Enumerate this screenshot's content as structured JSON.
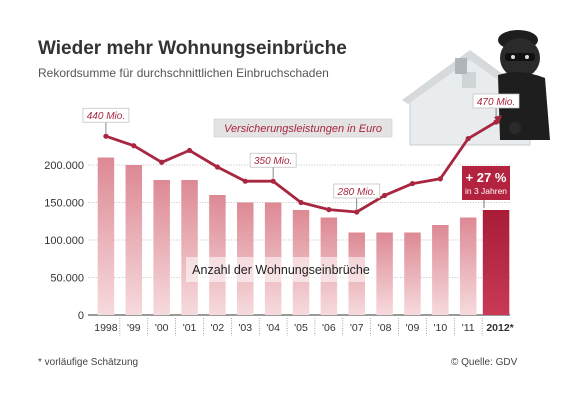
{
  "title": "Wieder mehr Wohnungseinbrüche",
  "subtitle": "Rekordsumme für durchschnittlichen Einbruchschaden",
  "footnote": "* vorläufige Schätzung",
  "source": "© Quelle: GDV",
  "colors": {
    "bar": "#e8a4ad",
    "bar_highlight": "#b3233f",
    "line": "#a8263f",
    "callout": "#b3233f"
  },
  "chart_data": {
    "type": "bar",
    "categories": [
      "1998",
      "'99",
      "'00",
      "'01",
      "'02",
      "'03",
      "'04",
      "'05",
      "'06",
      "'07",
      "'08",
      "'09",
      "'10",
      "'11",
      "2012*"
    ],
    "series": [
      {
        "name": "Anzahl der Wohnungseinbrüche",
        "type": "bar",
        "values": [
          210000,
          200000,
          180000,
          180000,
          160000,
          150000,
          150000,
          140000,
          130000,
          110000,
          110000,
          110000,
          120000,
          130000,
          140000
        ]
      },
      {
        "name": "Versicherungsleistungen in Euro",
        "type": "line",
        "values": [
          440,
          420,
          385,
          410,
          375,
          345,
          345,
          300,
          285,
          280,
          315,
          340,
          350,
          435,
          470
        ]
      }
    ],
    "ylim": [
      0,
      200000
    ],
    "yticks": [
      "0",
      "50.000",
      "100.000",
      "150.000",
      "200.000"
    ],
    "line_labels": [
      {
        "index": 0,
        "text": "440 Mio."
      },
      {
        "index": 6,
        "text": "350 Mio."
      },
      {
        "index": 9,
        "text": "280 Mio."
      },
      {
        "index": 14,
        "text": "470 Mio."
      }
    ],
    "callout": {
      "value": "+ 27 %",
      "note": "in 3 Jahren"
    },
    "grid": true
  }
}
